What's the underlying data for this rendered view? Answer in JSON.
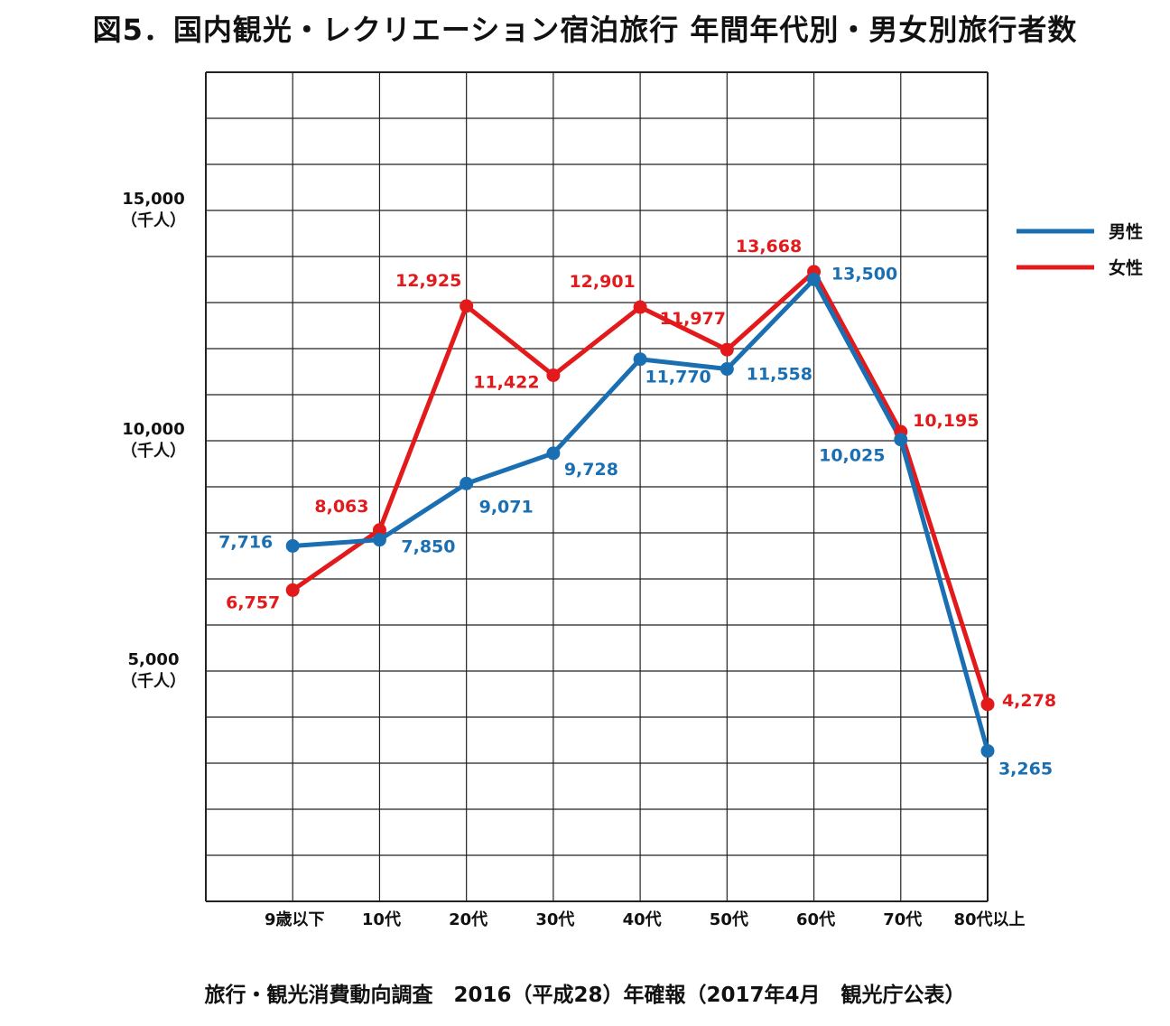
{
  "title": "図5．国内観光・レクリエーション宿泊旅行 年間年代別・男女別旅行者数",
  "source": "旅行・観光消費動向調査　2016（平成28）年確報（2017年4月　観光庁公表）",
  "chart_data": {
    "type": "line",
    "title": "図5．国内観光・レクリエーション宿泊旅行 年間年代別・男女別旅行者数",
    "xlabel": "",
    "ylabel": "",
    "ylim": [
      0,
      18000
    ],
    "yticks": [
      {
        "value": 5000,
        "label": "5,000",
        "unit": "（千人）"
      },
      {
        "value": 10000,
        "label": "10,000",
        "unit": "（千人）"
      },
      {
        "value": 15000,
        "label": "15,000",
        "unit": "（千人）"
      }
    ],
    "grid": true,
    "legend_position": "right",
    "categories": [
      "9歳以下",
      "10代",
      "20代",
      "30代",
      "40代",
      "50代",
      "60代",
      "70代",
      "80代以上"
    ],
    "series": [
      {
        "name": "男性",
        "color": "#1a6fb3",
        "values": [
          7716,
          7850,
          9071,
          9728,
          11770,
          11558,
          13500,
          10025,
          3265
        ],
        "labels": [
          "7,716",
          "7,850",
          "9,071",
          "9,728",
          "11,770",
          "11,558",
          "13,500",
          "10,025",
          "3,265"
        ]
      },
      {
        "name": "女性",
        "color": "#e31a1c",
        "values": [
          6757,
          8063,
          12925,
          11422,
          12901,
          11977,
          13668,
          10195,
          4278
        ],
        "labels": [
          "6,757",
          "8,063",
          "12,925",
          "11,422",
          "12,901",
          "11,977",
          "13,668",
          "10,195",
          "4,278"
        ]
      }
    ]
  }
}
